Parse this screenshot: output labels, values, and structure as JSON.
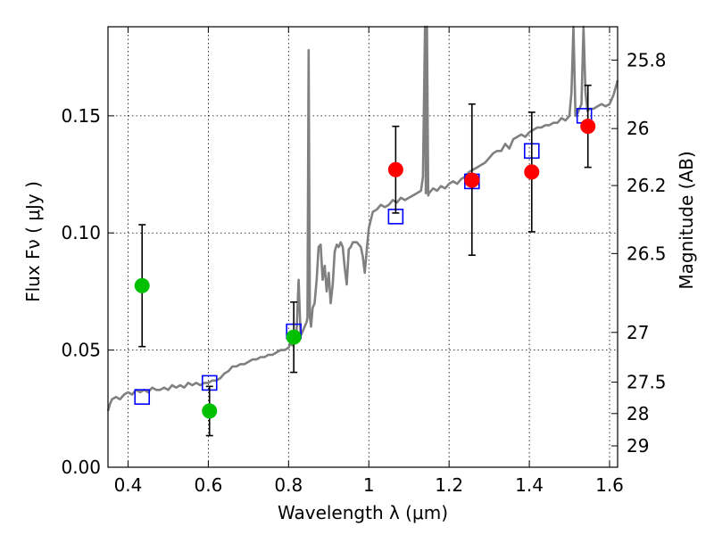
{
  "chart_data": {
    "type": "scatter",
    "xlabel": "Wavelength  λ (μm)",
    "ylabel": "Flux  Fν  ( μJy )",
    "ylabel_right": "Magnitude (AB)",
    "xlim": [
      0.35,
      1.62
    ],
    "ylim": [
      0.0,
      0.188
    ],
    "grid": true,
    "x_ticks": [
      {
        "value": 0.4,
        "label": "0.4"
      },
      {
        "value": 0.6,
        "label": "0.6"
      },
      {
        "value": 0.8,
        "label": "0.8"
      },
      {
        "value": 1.0,
        "label": "1"
      },
      {
        "value": 1.2,
        "label": "1.2"
      },
      {
        "value": 1.4,
        "label": "1.4"
      },
      {
        "value": 1.6,
        "label": "1.6"
      }
    ],
    "y_ticks": [
      {
        "value": 0.0,
        "label": "0.00"
      },
      {
        "value": 0.05,
        "label": "0.05"
      },
      {
        "value": 0.1,
        "label": "0.10"
      },
      {
        "value": 0.15,
        "label": "0.15"
      }
    ],
    "y_right_ticks": [
      {
        "mag": 25.8,
        "label": "25.8"
      },
      {
        "mag": 26.0,
        "label": "26"
      },
      {
        "mag": 26.2,
        "label": "26.2"
      },
      {
        "mag": 26.5,
        "label": "26.5"
      },
      {
        "mag": 27.0,
        "label": "27"
      },
      {
        "mag": 27.5,
        "label": "27.5"
      },
      {
        "mag": 28.0,
        "label": "28"
      },
      {
        "mag": 29.0,
        "label": "29"
      }
    ],
    "series": [
      {
        "kind": "line",
        "color": "#808080",
        "points": [
          [
            0.35,
            0.024
          ],
          [
            0.355,
            0.027
          ],
          [
            0.36,
            0.029
          ],
          [
            0.37,
            0.03
          ],
          [
            0.38,
            0.029
          ],
          [
            0.39,
            0.031
          ],
          [
            0.4,
            0.032
          ],
          [
            0.41,
            0.031
          ],
          [
            0.42,
            0.033
          ],
          [
            0.43,
            0.032
          ],
          [
            0.44,
            0.033
          ],
          [
            0.45,
            0.032
          ],
          [
            0.46,
            0.034
          ],
          [
            0.47,
            0.033
          ],
          [
            0.48,
            0.033
          ],
          [
            0.49,
            0.034
          ],
          [
            0.5,
            0.033
          ],
          [
            0.51,
            0.035
          ],
          [
            0.52,
            0.034
          ],
          [
            0.53,
            0.035
          ],
          [
            0.54,
            0.034
          ],
          [
            0.55,
            0.036
          ],
          [
            0.56,
            0.035
          ],
          [
            0.57,
            0.036
          ],
          [
            0.58,
            0.035
          ],
          [
            0.59,
            0.036
          ],
          [
            0.6,
            0.036
          ],
          [
            0.61,
            0.037
          ],
          [
            0.62,
            0.037
          ],
          [
            0.63,
            0.038
          ],
          [
            0.64,
            0.04
          ],
          [
            0.65,
            0.041
          ],
          [
            0.66,
            0.043
          ],
          [
            0.67,
            0.043
          ],
          [
            0.68,
            0.044
          ],
          [
            0.69,
            0.044
          ],
          [
            0.7,
            0.045
          ],
          [
            0.71,
            0.046
          ],
          [
            0.72,
            0.046
          ],
          [
            0.73,
            0.047
          ],
          [
            0.74,
            0.047
          ],
          [
            0.75,
            0.048
          ],
          [
            0.76,
            0.048
          ],
          [
            0.77,
            0.049
          ],
          [
            0.78,
            0.05
          ],
          [
            0.79,
            0.05
          ],
          [
            0.8,
            0.051
          ],
          [
            0.805,
            0.053
          ],
          [
            0.81,
            0.052
          ],
          [
            0.815,
            0.054
          ],
          [
            0.82,
            0.058
          ],
          [
            0.825,
            0.08
          ],
          [
            0.83,
            0.056
          ],
          [
            0.835,
            0.058
          ],
          [
            0.84,
            0.06
          ],
          [
            0.845,
            0.062
          ],
          [
            0.847,
            0.064
          ],
          [
            0.85,
            0.178
          ],
          [
            0.853,
            0.064
          ],
          [
            0.856,
            0.06
          ],
          [
            0.86,
            0.068
          ],
          [
            0.865,
            0.07
          ],
          [
            0.87,
            0.08
          ],
          [
            0.875,
            0.094
          ],
          [
            0.88,
            0.095
          ],
          [
            0.885,
            0.08
          ],
          [
            0.89,
            0.086
          ],
          [
            0.895,
            0.075
          ],
          [
            0.9,
            0.083
          ],
          [
            0.905,
            0.07
          ],
          [
            0.91,
            0.078
          ],
          [
            0.915,
            0.092
          ],
          [
            0.92,
            0.095
          ],
          [
            0.925,
            0.094
          ],
          [
            0.93,
            0.096
          ],
          [
            0.935,
            0.094
          ],
          [
            0.94,
            0.085
          ],
          [
            0.945,
            0.078
          ],
          [
            0.95,
            0.093
          ],
          [
            0.955,
            0.094
          ],
          [
            0.96,
            0.096
          ],
          [
            0.97,
            0.096
          ],
          [
            0.98,
            0.094
          ],
          [
            0.985,
            0.09
          ],
          [
            0.99,
            0.083
          ],
          [
            0.995,
            0.093
          ],
          [
            1.0,
            0.102
          ],
          [
            1.01,
            0.109
          ],
          [
            1.02,
            0.11
          ],
          [
            1.03,
            0.112
          ],
          [
            1.04,
            0.111
          ],
          [
            1.05,
            0.112
          ],
          [
            1.06,
            0.114
          ],
          [
            1.07,
            0.113
          ],
          [
            1.08,
            0.115
          ],
          [
            1.09,
            0.114
          ],
          [
            1.1,
            0.115
          ],
          [
            1.11,
            0.116
          ],
          [
            1.12,
            0.117
          ],
          [
            1.13,
            0.118
          ],
          [
            1.135,
            0.124
          ],
          [
            1.14,
            0.188
          ],
          [
            1.142,
            0.117
          ],
          [
            1.145,
            0.188
          ],
          [
            1.148,
            0.116
          ],
          [
            1.15,
            0.117
          ],
          [
            1.16,
            0.119
          ],
          [
            1.17,
            0.118
          ],
          [
            1.18,
            0.12
          ],
          [
            1.19,
            0.119
          ],
          [
            1.2,
            0.121
          ],
          [
            1.21,
            0.122
          ],
          [
            1.22,
            0.121
          ],
          [
            1.23,
            0.123
          ],
          [
            1.24,
            0.124
          ],
          [
            1.25,
            0.126
          ],
          [
            1.26,
            0.127
          ],
          [
            1.27,
            0.128
          ],
          [
            1.28,
            0.129
          ],
          [
            1.29,
            0.13
          ],
          [
            1.3,
            0.132
          ],
          [
            1.31,
            0.134
          ],
          [
            1.32,
            0.135
          ],
          [
            1.33,
            0.135
          ],
          [
            1.34,
            0.138
          ],
          [
            1.35,
            0.136
          ],
          [
            1.36,
            0.14
          ],
          [
            1.37,
            0.141
          ],
          [
            1.38,
            0.142
          ],
          [
            1.39,
            0.141
          ],
          [
            1.4,
            0.143
          ],
          [
            1.41,
            0.144
          ],
          [
            1.42,
            0.145
          ],
          [
            1.43,
            0.145
          ],
          [
            1.44,
            0.146
          ],
          [
            1.45,
            0.146
          ],
          [
            1.46,
            0.147
          ],
          [
            1.47,
            0.147
          ],
          [
            1.48,
            0.149
          ],
          [
            1.49,
            0.148
          ],
          [
            1.5,
            0.15
          ],
          [
            1.505,
            0.16
          ],
          [
            1.51,
            0.188
          ],
          [
            1.515,
            0.15
          ],
          [
            1.52,
            0.151
          ],
          [
            1.53,
            0.155
          ],
          [
            1.535,
            0.188
          ],
          [
            1.54,
            0.16
          ],
          [
            1.545,
            0.152
          ],
          [
            1.55,
            0.153
          ],
          [
            1.56,
            0.153
          ],
          [
            1.57,
            0.154
          ],
          [
            1.58,
            0.155
          ],
          [
            1.59,
            0.154
          ],
          [
            1.6,
            0.155
          ],
          [
            1.61,
            0.159
          ],
          [
            1.62,
            0.165
          ]
        ]
      },
      {
        "kind": "open-squares",
        "color": "#0000ff",
        "points": [
          [
            0.435,
            0.03
          ],
          [
            0.603,
            0.036
          ],
          [
            0.813,
            0.058
          ],
          [
            1.067,
            0.107
          ],
          [
            1.257,
            0.122
          ],
          [
            1.406,
            0.135
          ],
          [
            1.537,
            0.15
          ]
        ]
      },
      {
        "kind": "errorbars",
        "color": "#000000",
        "points": [
          [
            0.435,
            0.0775,
            0.0515,
            0.1035
          ],
          [
            0.603,
            0.024,
            0.0135,
            0.0345
          ],
          [
            0.813,
            0.0555,
            0.0405,
            0.0705
          ],
          [
            1.067,
            0.127,
            0.1085,
            0.1455
          ],
          [
            1.257,
            0.1225,
            0.0905,
            0.155
          ],
          [
            1.406,
            0.126,
            0.1005,
            0.1515
          ],
          [
            1.546,
            0.1455,
            0.128,
            0.163
          ]
        ]
      },
      {
        "kind": "filled-circles",
        "color": "#00c000",
        "points": [
          [
            0.435,
            0.0775
          ],
          [
            0.603,
            0.024
          ],
          [
            0.813,
            0.0555
          ]
        ]
      },
      {
        "kind": "filled-circles",
        "color": "#ff0000",
        "points": [
          [
            1.067,
            0.127
          ],
          [
            1.257,
            0.1225
          ],
          [
            1.406,
            0.126
          ],
          [
            1.546,
            0.1455
          ]
        ]
      }
    ]
  }
}
